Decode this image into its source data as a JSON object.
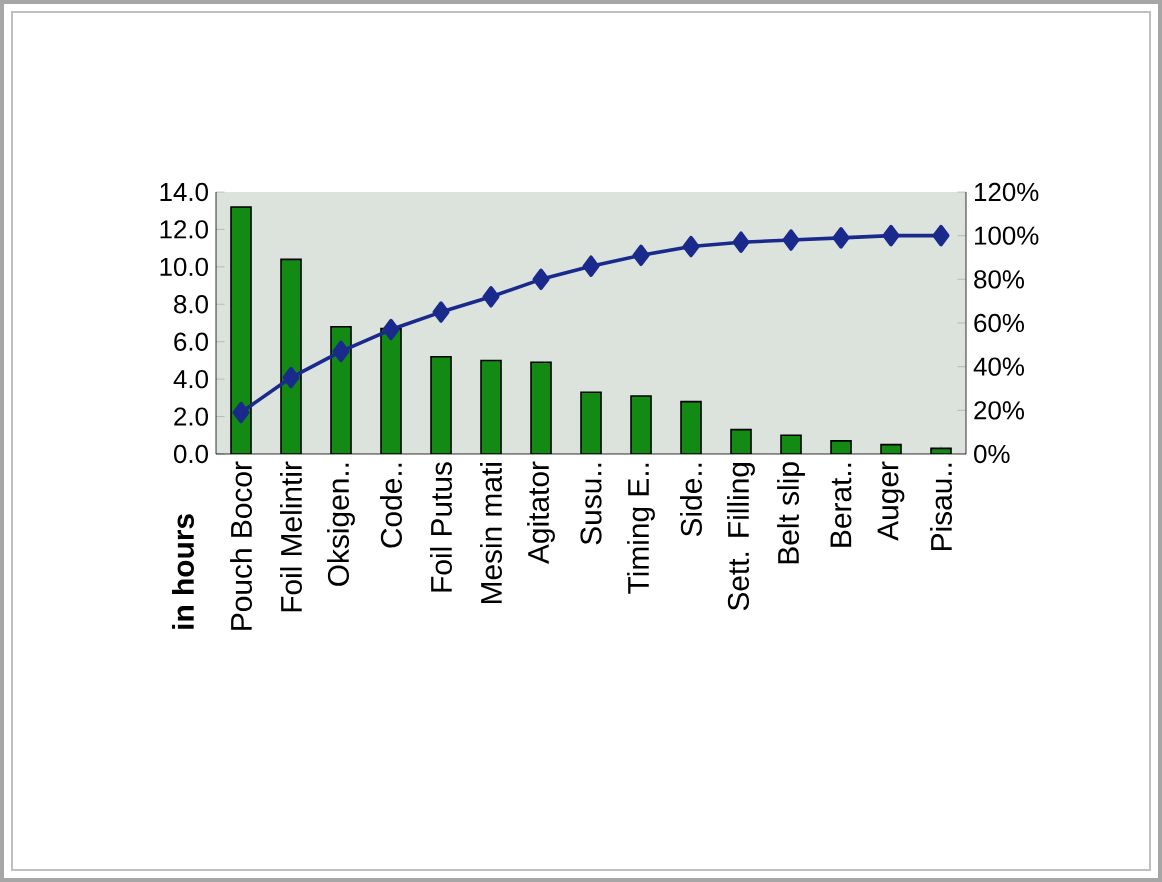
{
  "chart_data": {
    "type": "bar",
    "ylabel": "in hours",
    "categories": [
      "Pouch Bocor",
      "Foil Melintir",
      "Oksigen..",
      "Code..",
      "Foil Putus",
      "Mesin mati",
      "Agitator",
      "Susu..",
      "Timing E..",
      "Side..",
      "Sett. Filling",
      "Belt slip",
      "Berat..",
      "Auger",
      "Pisau.."
    ],
    "series": [
      {
        "color": "#138a13",
        "values": [
          13.2,
          10.4,
          6.8,
          6.7,
          5.2,
          5.0,
          4.9,
          3.3,
          3.1,
          2.8,
          1.3,
          1.0,
          0.7,
          0.5,
          0.3
        ]
      },
      {
        "type": "line",
        "axis": "y2",
        "color": "#1a2a8c",
        "marker": "diamond",
        "values": [
          19,
          35,
          47,
          57,
          65,
          72,
          80,
          86,
          91,
          95,
          97,
          98,
          99,
          100,
          100
        ]
      }
    ],
    "ylim": [
      0,
      14
    ],
    "yticks": [
      {
        "value": 0,
        "label": "0.0"
      },
      {
        "value": 2,
        "label": "2.0"
      },
      {
        "value": 4,
        "label": "4.0"
      },
      {
        "value": 6,
        "label": "6.0"
      },
      {
        "value": 8,
        "label": "8.0"
      },
      {
        "value": 10,
        "label": "10.0"
      },
      {
        "value": 12,
        "label": "12.0"
      },
      {
        "value": 14,
        "label": "14.0"
      }
    ],
    "y2lim": [
      0,
      120
    ],
    "y2ticks": [
      {
        "value": 0,
        "label": "0%"
      },
      {
        "value": 20,
        "label": "20%"
      },
      {
        "value": 40,
        "label": "40%"
      },
      {
        "value": 60,
        "label": "60%"
      },
      {
        "value": 80,
        "label": "80%"
      },
      {
        "value": 100,
        "label": "100%"
      },
      {
        "value": 120,
        "label": "120%"
      }
    ],
    "grid": false
  }
}
